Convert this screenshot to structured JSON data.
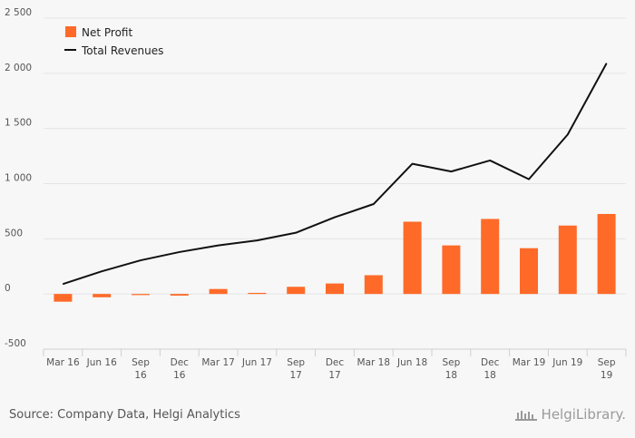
{
  "chart_data": {
    "type": "bar",
    "categories": [
      "Mar 16",
      "Jun 16",
      "Sep 16",
      "Dec 16",
      "Mar 17",
      "Jun 17",
      "Sep 17",
      "Dec 17",
      "Mar 18",
      "Jun 18",
      "Sep 18",
      "Dec 18",
      "Mar 19",
      "Jun 19",
      "Sep 19"
    ],
    "category_lines": [
      [
        "Mar 16"
      ],
      [
        "Jun 16"
      ],
      [
        "Sep",
        "16"
      ],
      [
        "Dec",
        "16"
      ],
      [
        "Mar 17"
      ],
      [
        "Jun 17"
      ],
      [
        "Sep",
        "17"
      ],
      [
        "Dec",
        "17"
      ],
      [
        "Mar 18"
      ],
      [
        "Jun 18"
      ],
      [
        "Sep",
        "18"
      ],
      [
        "Dec",
        "18"
      ],
      [
        "Mar 19"
      ],
      [
        "Jun 19"
      ],
      [
        "Sep",
        "19"
      ]
    ],
    "series": [
      {
        "name": "Net Profit",
        "type": "bar",
        "color": "#ff6a28",
        "values": [
          -70,
          -30,
          -10,
          -15,
          45,
          10,
          65,
          95,
          170,
          655,
          440,
          680,
          415,
          620,
          725
        ]
      },
      {
        "name": "Total Revenues",
        "type": "line",
        "color": "#111111",
        "values": [
          90,
          205,
          305,
          380,
          440,
          485,
          555,
          695,
          815,
          1180,
          1110,
          1210,
          1040,
          1445,
          2090
        ]
      }
    ],
    "ylim": [
      -500,
      2500
    ],
    "yticks": [
      -500,
      0,
      500,
      1000,
      1500,
      2000,
      2500
    ],
    "ytick_labels": [
      "-500",
      "0",
      "500",
      "1 000",
      "1 500",
      "2 000",
      "2 500"
    ],
    "grid": "horizontal",
    "legend": "top-left"
  },
  "footer": {
    "source": "Source: Company Data, Helgi Analytics",
    "brand": "HelgiLibrary."
  },
  "colors": {
    "bar": "#ff6a28",
    "line": "#111111",
    "grid": "#e4e4e4",
    "background": "#f7f7f7"
  }
}
